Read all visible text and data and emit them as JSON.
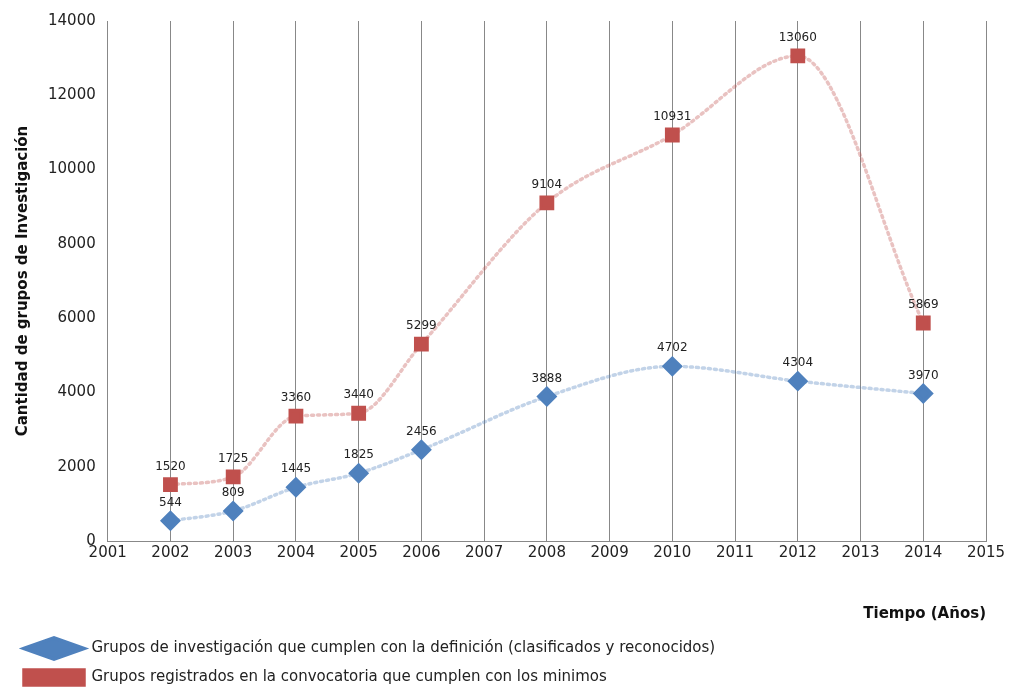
{
  "chart_data": {
    "type": "line",
    "xlabel": "Tiempo (Años)",
    "ylabel": "Cantidad de grupos de Investigación",
    "x": [
      2002,
      2003,
      2004,
      2005,
      2006,
      2008,
      2010,
      2012,
      2014
    ],
    "xlim": [
      2001,
      2015
    ],
    "xticks": [
      2001,
      2002,
      2003,
      2004,
      2005,
      2006,
      2007,
      2008,
      2009,
      2010,
      2011,
      2012,
      2013,
      2014,
      2015
    ],
    "ylim": [
      0,
      14000
    ],
    "yticks": [
      0,
      2000,
      4000,
      6000,
      8000,
      10000,
      12000,
      14000
    ],
    "grid": "x",
    "legend": "bottom",
    "data_labels": true,
    "line_style": "dotted",
    "series": [
      {
        "name": "Grupos de investigación que cumplen con la definición (clasificados y reconocidos)",
        "color": "#4f81bd",
        "marker": "diamond",
        "values": [
          544,
          809,
          1445,
          1825,
          2456,
          3888,
          4702,
          4304,
          3970
        ]
      },
      {
        "name": "Grupos registrados en la convocatoria que cumplen con los minimos",
        "color": "#c0504d",
        "marker": "square",
        "values": [
          1520,
          1725,
          3360,
          3440,
          5299,
          9104,
          10931,
          13060,
          5869
        ]
      }
    ]
  }
}
